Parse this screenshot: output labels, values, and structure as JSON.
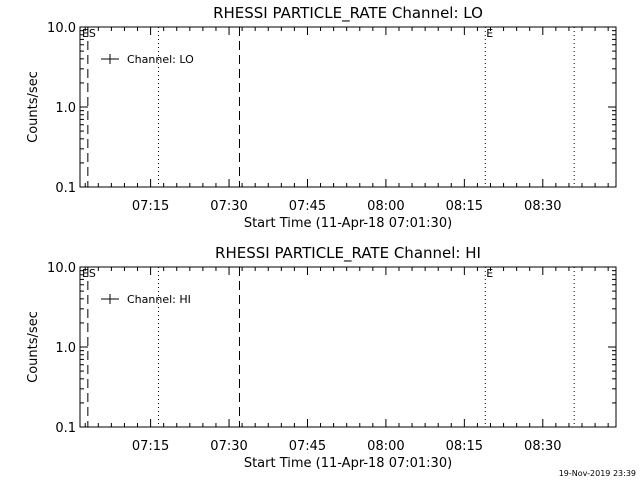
{
  "footer_stamp": "19-Nov-2019 23:39",
  "chart_data": [
    {
      "type": "line",
      "title": "RHESSI PARTICLE_RATE Channel: LO",
      "xlabel": "Start Time (11-Apr-18 07:01:30)",
      "ylabel": "Counts/sec",
      "y_scale": "log",
      "ylim": [
        0.1,
        10.0
      ],
      "y_tick_labels": [
        "0.1",
        "1.0",
        "10.0"
      ],
      "y_tick_values": [
        0.1,
        1.0,
        10.0
      ],
      "xlim": [
        "07:01:30",
        "08:44:00"
      ],
      "x_tick_labels": [
        "07:15",
        "07:30",
        "07:45",
        "08:00",
        "08:15",
        "08:30"
      ],
      "x_tick_values": [
        "07:15",
        "07:30",
        "07:45",
        "08:00",
        "08:15",
        "08:30"
      ],
      "series": [
        {
          "name": "Channel: LO",
          "values": []
        }
      ],
      "markers": [
        {
          "time": "07:03:00",
          "style": "dashed",
          "flag": "S"
        },
        {
          "time": "07:16:30",
          "style": "dotted",
          "flag": ""
        },
        {
          "time": "07:32:00",
          "style": "dashed",
          "flag": ""
        },
        {
          "time": "08:19:00",
          "style": "dotted",
          "flag": "E"
        },
        {
          "time": "08:36:00",
          "style": "dotted",
          "flag": ""
        }
      ],
      "corner_flag": "E",
      "legend_position": "top-left",
      "grid": false
    },
    {
      "type": "line",
      "title": "RHESSI PARTICLE_RATE Channel: HI",
      "xlabel": "Start Time (11-Apr-18 07:01:30)",
      "ylabel": "Counts/sec",
      "y_scale": "log",
      "ylim": [
        0.1,
        10.0
      ],
      "y_tick_labels": [
        "0.1",
        "1.0",
        "10.0"
      ],
      "y_tick_values": [
        0.1,
        1.0,
        10.0
      ],
      "xlim": [
        "07:01:30",
        "08:44:00"
      ],
      "x_tick_labels": [
        "07:15",
        "07:30",
        "07:45",
        "08:00",
        "08:15",
        "08:30"
      ],
      "x_tick_values": [
        "07:15",
        "07:30",
        "07:45",
        "08:00",
        "08:15",
        "08:30"
      ],
      "series": [
        {
          "name": "Channel: HI",
          "values": []
        }
      ],
      "markers": [
        {
          "time": "07:03:00",
          "style": "dashed",
          "flag": "S"
        },
        {
          "time": "07:16:30",
          "style": "dotted",
          "flag": ""
        },
        {
          "time": "07:32:00",
          "style": "dashed",
          "flag": ""
        },
        {
          "time": "08:19:00",
          "style": "dotted",
          "flag": "E"
        },
        {
          "time": "08:36:00",
          "style": "dotted",
          "flag": ""
        }
      ],
      "corner_flag": "E",
      "legend_position": "top-left",
      "grid": false
    }
  ]
}
